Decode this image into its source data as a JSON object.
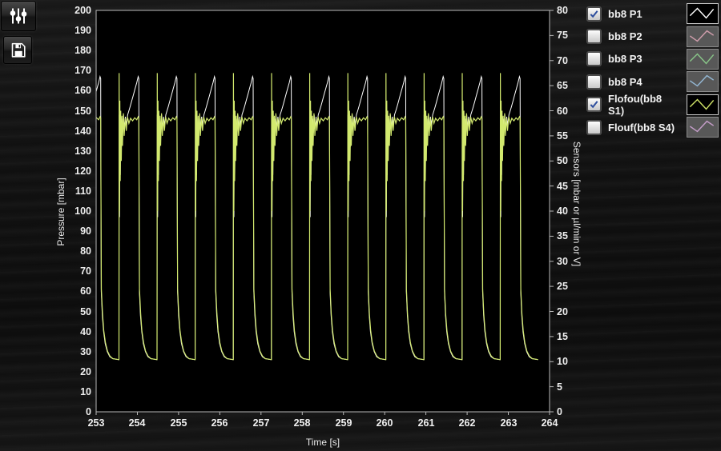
{
  "toolbar": {
    "settings_button": {
      "icon": "sliders-icon"
    },
    "save_button": {
      "icon": "floppy-disk-icon"
    }
  },
  "legend": {
    "items": [
      {
        "label": "bb8 P1",
        "checked": true,
        "color": "#ffffff"
      },
      {
        "label": "bb8 P2",
        "checked": false,
        "color": "#e2a8b8"
      },
      {
        "label": "bb8 P3",
        "checked": false,
        "color": "#90d890"
      },
      {
        "label": "bb8 P4",
        "checked": false,
        "color": "#9cc6e6"
      },
      {
        "label": "Flofou(bb8 S1)",
        "checked": true,
        "color": "#ccdf66"
      },
      {
        "label": "Flouf(bb8 S4)",
        "checked": false,
        "color": "#d6a8da"
      }
    ]
  },
  "chart_data": {
    "type": "line",
    "title": "",
    "xlabel": "Time [s]",
    "x_range": [
      253,
      264
    ],
    "x_tick_step": 1,
    "left_axis": {
      "label": "Pressure [mbar]",
      "range": [
        0,
        200
      ],
      "tick_step": 10
    },
    "right_axis": {
      "label": "Sensors [mbar or µl/min or V]",
      "range": [
        0,
        80
      ],
      "tick_step": 5
    },
    "grid": false,
    "plot_background": "#000000",
    "axis_color": "#b8b8b8",
    "series": [
      {
        "name": "bb8 P1",
        "axis": "left",
        "color": "#ffffff",
        "visible": true,
        "waveform": {
          "period_s": 0.925,
          "pulse_starts": [
            252.62,
            253.545,
            254.47,
            255.395,
            256.32,
            257.245,
            258.17,
            259.095,
            260.02,
            260.945,
            261.87,
            262.795
          ],
          "pulse_template": [
            [
              0.0,
              26
            ],
            [
              0.008,
              26
            ],
            [
              0.012,
              148
            ],
            [
              0.022,
              97
            ],
            [
              0.032,
              150
            ],
            [
              0.042,
              118
            ],
            [
              0.055,
              147
            ],
            [
              0.07,
              132
            ],
            [
              0.085,
              146
            ],
            [
              0.1,
              139
            ],
            [
              0.12,
              148
            ],
            [
              0.14,
              141
            ],
            [
              0.165,
              147
            ],
            [
              0.19,
              143
            ],
            [
              0.22,
              148
            ],
            [
              0.25,
              150
            ],
            [
              0.28,
              152
            ],
            [
              0.32,
              155
            ],
            [
              0.36,
              158
            ],
            [
              0.4,
              161
            ],
            [
              0.44,
              164
            ],
            [
              0.475,
              167
            ],
            [
              0.49,
              166
            ],
            [
              0.495,
              120
            ],
            [
              0.505,
              60
            ],
            [
              0.53,
              48
            ],
            [
              0.56,
              40
            ],
            [
              0.6,
              34
            ],
            [
              0.65,
              30
            ],
            [
              0.71,
              27.5
            ],
            [
              0.78,
              26.5
            ],
            [
              0.925,
              26
            ]
          ]
        }
      },
      {
        "name": "bb8 P2",
        "axis": "left",
        "color": "#e2a8b8",
        "visible": false
      },
      {
        "name": "bb8 P3",
        "axis": "left",
        "color": "#90d890",
        "visible": false
      },
      {
        "name": "bb8 P4",
        "axis": "left",
        "color": "#9cc6e6",
        "visible": false
      },
      {
        "name": "Flofou(bb8 S1)",
        "axis": "right",
        "color": "#d2e96e",
        "visible": true,
        "waveform": {
          "period_s": 0.925,
          "pulse_starts": [
            252.62,
            253.545,
            254.47,
            255.395,
            256.32,
            257.245,
            258.17,
            259.095,
            260.02,
            260.945,
            261.87,
            262.795
          ],
          "pulse_template": [
            [
              0.0,
              10.4
            ],
            [
              0.008,
              10.4
            ],
            [
              0.012,
              67.5
            ],
            [
              0.02,
              40
            ],
            [
              0.03,
              62
            ],
            [
              0.04,
              46
            ],
            [
              0.052,
              60
            ],
            [
              0.065,
              50
            ],
            [
              0.08,
              59
            ],
            [
              0.095,
              53
            ],
            [
              0.115,
              59.5
            ],
            [
              0.135,
              55
            ],
            [
              0.16,
              58.5
            ],
            [
              0.185,
              56
            ],
            [
              0.215,
              58.8
            ],
            [
              0.25,
              57.5
            ],
            [
              0.29,
              58.5
            ],
            [
              0.34,
              58
            ],
            [
              0.39,
              58.6
            ],
            [
              0.44,
              58.2
            ],
            [
              0.475,
              58.8
            ],
            [
              0.49,
              58.5
            ],
            [
              0.497,
              45
            ],
            [
              0.507,
              24.5
            ],
            [
              0.535,
              19.5
            ],
            [
              0.565,
              16.2
            ],
            [
              0.605,
              13.8
            ],
            [
              0.655,
              12.1
            ],
            [
              0.715,
              11.1
            ],
            [
              0.785,
              10.6
            ],
            [
              0.925,
              10.4
            ]
          ]
        }
      },
      {
        "name": "Flouf(bb8 S4)",
        "axis": "right",
        "color": "#d6a8da",
        "visible": false
      }
    ]
  }
}
